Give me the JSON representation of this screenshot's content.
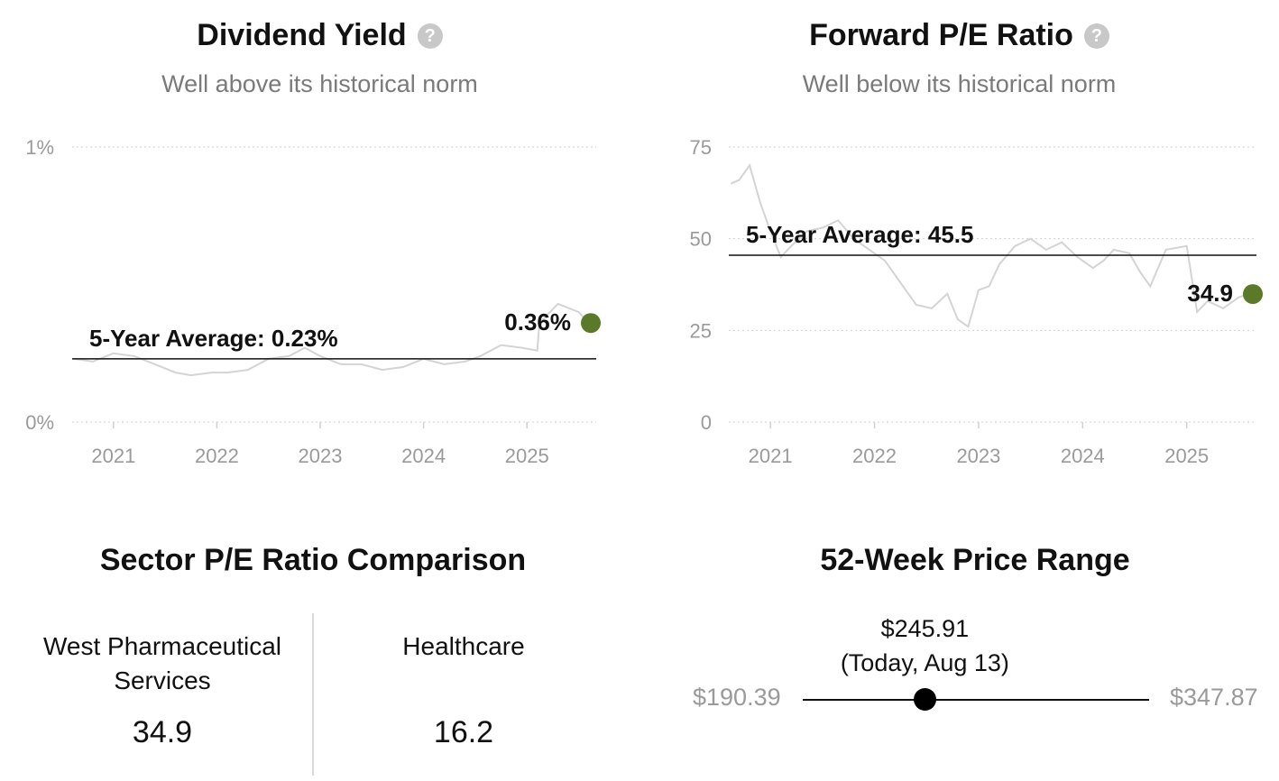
{
  "dividend_yield": {
    "title": "Dividend Yield",
    "subtitle": "Well above its historical norm",
    "help_icon": "question-circle-icon"
  },
  "forward_pe": {
    "title": "Forward P/E Ratio",
    "subtitle": "Well below its historical norm",
    "help_icon": "question-circle-icon"
  },
  "sector": {
    "title": "Sector P/E Ratio Comparison",
    "company_line1": "West Pharmaceutical",
    "company_line2": "Services",
    "company_value": "34.9",
    "sector_name": "Healthcare",
    "sector_value": "16.2"
  },
  "price_range": {
    "title": "52-Week Price Range",
    "low_label": "$190.39",
    "high_label": "$347.87",
    "current_label": "$245.91",
    "today_label": "(Today, Aug 13)",
    "low": 190.39,
    "high": 347.87,
    "current": 245.91
  },
  "colors": {
    "current_marker": "#5a7a2a",
    "history_line": "#d4d4d4",
    "average_line": "#111111",
    "grid": "#d0d0d0",
    "axis_text": "#9a9a9a"
  },
  "chart_data": [
    {
      "type": "line",
      "title": "Dividend Yield",
      "subtitle": "Well above its historical norm",
      "xlabel": "",
      "ylabel": "",
      "x_ticks": [
        "2021",
        "2022",
        "2023",
        "2024",
        "2025"
      ],
      "y_ticks": [
        "0%",
        "1%"
      ],
      "ylim": [
        0,
        1
      ],
      "xlim": [
        2020.6,
        2025.67
      ],
      "grid": true,
      "average": 0.23,
      "average_label": "5-Year Average: 0.23%",
      "current": 0.36,
      "current_label": "0.36%",
      "series": [
        {
          "x": [
            2020.62,
            2020.8,
            2021.0,
            2021.2,
            2021.4,
            2021.6,
            2021.75,
            2021.95,
            2022.1,
            2022.3,
            2022.5,
            2022.7,
            2022.85,
            2023.0,
            2023.2,
            2023.4,
            2023.6,
            2023.8,
            2024.0,
            2024.2,
            2024.4,
            2024.55,
            2024.75,
            2024.95,
            2025.1,
            2025.12,
            2025.3,
            2025.5,
            2025.6
          ],
          "values": [
            0.23,
            0.22,
            0.25,
            0.24,
            0.21,
            0.18,
            0.17,
            0.18,
            0.18,
            0.19,
            0.23,
            0.24,
            0.27,
            0.24,
            0.21,
            0.21,
            0.19,
            0.2,
            0.23,
            0.21,
            0.22,
            0.24,
            0.28,
            0.27,
            0.26,
            0.36,
            0.43,
            0.4,
            0.36
          ]
        }
      ]
    },
    {
      "type": "line",
      "title": "Forward P/E Ratio",
      "subtitle": "Well below its historical norm",
      "xlabel": "",
      "ylabel": "",
      "x_ticks": [
        "2021",
        "2022",
        "2023",
        "2024",
        "2025"
      ],
      "y_ticks": [
        "0",
        "25",
        "50",
        "75"
      ],
      "ylim": [
        0,
        75
      ],
      "xlim": [
        2020.6,
        2025.67
      ],
      "grid": true,
      "average": 45.5,
      "average_label": "5-Year Average: 45.5",
      "current": 34.9,
      "current_label": "34.9",
      "series": [
        {
          "x": [
            2020.62,
            2020.7,
            2020.8,
            2020.9,
            2021.0,
            2021.1,
            2021.2,
            2021.35,
            2021.5,
            2021.65,
            2021.8,
            2021.95,
            2022.1,
            2022.25,
            2022.4,
            2022.55,
            2022.7,
            2022.8,
            2022.9,
            2023.0,
            2023.1,
            2023.2,
            2023.35,
            2023.5,
            2023.65,
            2023.8,
            2023.95,
            2024.1,
            2024.2,
            2024.3,
            2024.45,
            2024.55,
            2024.65,
            2024.8,
            2025.0,
            2025.1,
            2025.2,
            2025.35,
            2025.5,
            2025.6
          ],
          "values": [
            65,
            66,
            70,
            60,
            52,
            45,
            48,
            52,
            53,
            55,
            50,
            47,
            44,
            38,
            32,
            31,
            35,
            28,
            26,
            36,
            37,
            43,
            48,
            50,
            47,
            49,
            45,
            42,
            44,
            47,
            46,
            41,
            37,
            47,
            48,
            30,
            33,
            31,
            34,
            35
          ]
        }
      ]
    }
  ]
}
